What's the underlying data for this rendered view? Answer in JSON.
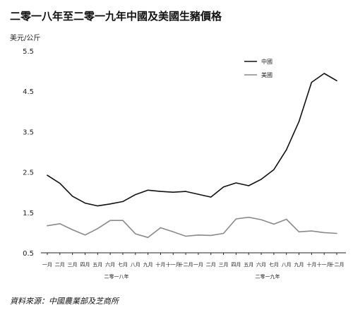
{
  "chart_data": {
    "type": "line",
    "title": "二零一八年至二零一九年中國及美國生豬價格",
    "ylabel": "美元/公斤",
    "ylim": [
      0.5,
      5.5
    ],
    "yticks": [
      "5.5",
      "4.5",
      "3.5",
      "2.5",
      "1.5",
      "0.5"
    ],
    "grid": false,
    "legend_position": "top-right",
    "categories": [
      "一月",
      "二月",
      "三月",
      "四月",
      "五月",
      "六月",
      "七月",
      "八月",
      "九月",
      "十月",
      "十一月",
      "十二月",
      "一月",
      "二月",
      "三月",
      "四月",
      "五月",
      "六月",
      "七月",
      "八月",
      "九月",
      "十月",
      "十一月",
      "十二月"
    ],
    "groups": [
      {
        "label": "二零一八年",
        "start": 0,
        "end": 11
      },
      {
        "label": "二零一九年",
        "start": 12,
        "end": 23
      }
    ],
    "series": [
      {
        "name": "中國",
        "color": "#111111",
        "values": [
          2.42,
          2.22,
          1.9,
          1.73,
          1.66,
          1.71,
          1.77,
          1.94,
          2.05,
          2.02,
          2.0,
          2.02,
          1.95,
          1.88,
          2.13,
          2.23,
          2.16,
          2.32,
          2.56,
          3.05,
          3.75,
          4.72,
          4.94,
          4.76
        ]
      },
      {
        "name": "美國",
        "color": "#8a8a8a",
        "values": [
          1.17,
          1.22,
          1.07,
          0.94,
          1.1,
          1.3,
          1.3,
          0.97,
          0.88,
          1.12,
          1.02,
          0.91,
          0.94,
          0.93,
          0.98,
          1.34,
          1.38,
          1.32,
          1.21,
          1.33,
          1.02,
          1.04,
          1.0,
          0.98
        ]
      }
    ],
    "source": "資料來源：中國農業部及芝商所"
  }
}
